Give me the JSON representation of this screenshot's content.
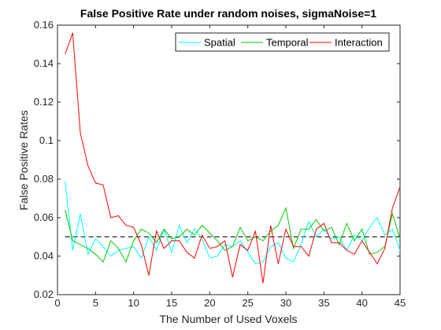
{
  "chart_data": {
    "type": "line",
    "title": "False Positive Rate under random noises, sigmaNoise=1",
    "xlabel": "The Number of Used Voxels",
    "ylabel": "False Positive Rates",
    "xlim": [
      0,
      45
    ],
    "ylim": [
      0.02,
      0.16
    ],
    "xticks": [
      0,
      5,
      10,
      15,
      20,
      25,
      30,
      35,
      40,
      45
    ],
    "xtick_labels": [
      "0",
      "5",
      "10",
      "15",
      "20",
      "25",
      "30",
      "35",
      "40",
      "45"
    ],
    "yticks": [
      0.02,
      0.04,
      0.06,
      0.08,
      0.1,
      0.12,
      0.14,
      0.16
    ],
    "ytick_labels": [
      "0.02",
      "0.04",
      "0.06",
      "0.08",
      "0.1",
      "0.12",
      "0.14",
      "0.16"
    ],
    "legend_position": "top-right",
    "grid": false,
    "x": [
      1,
      2,
      3,
      4,
      5,
      6,
      7,
      8,
      9,
      10,
      11,
      12,
      13,
      14,
      15,
      16,
      17,
      18,
      19,
      20,
      21,
      22,
      23,
      24,
      25,
      26,
      27,
      28,
      29,
      30,
      31,
      32,
      33,
      34,
      35,
      36,
      37,
      38,
      39,
      40,
      41,
      42,
      43,
      44,
      45
    ],
    "series": [
      {
        "name": "Spatial",
        "color": "#00ffff",
        "values": [
          0.079,
          0.043,
          0.062,
          0.041,
          0.049,
          0.045,
          0.04,
          0.043,
          0.044,
          0.045,
          0.039,
          0.05,
          0.043,
          0.054,
          0.042,
          0.056,
          0.047,
          0.054,
          0.049,
          0.039,
          0.04,
          0.046,
          0.045,
          0.048,
          0.042,
          0.036,
          0.037,
          0.045,
          0.047,
          0.039,
          0.037,
          0.046,
          0.058,
          0.05,
          0.054,
          0.049,
          0.05,
          0.043,
          0.051,
          0.048,
          0.055,
          0.06,
          0.051,
          0.054,
          0.043
        ]
      },
      {
        "name": "Temporal",
        "color": "#00cc00",
        "values": [
          0.064,
          0.048,
          0.046,
          0.044,
          0.041,
          0.037,
          0.048,
          0.044,
          0.037,
          0.048,
          0.054,
          0.052,
          0.047,
          0.054,
          0.049,
          0.05,
          0.054,
          0.051,
          0.056,
          0.052,
          0.048,
          0.043,
          0.045,
          0.055,
          0.048,
          0.05,
          0.048,
          0.053,
          0.056,
          0.065,
          0.044,
          0.054,
          0.054,
          0.059,
          0.053,
          0.055,
          0.046,
          0.057,
          0.048,
          0.054,
          0.041,
          0.042,
          0.045,
          0.062,
          0.049
        ]
      },
      {
        "name": "Interaction",
        "color": "#ff0000",
        "values": [
          0.145,
          0.156,
          0.104,
          0.087,
          0.078,
          0.077,
          0.06,
          0.061,
          0.056,
          0.055,
          0.046,
          0.03,
          0.053,
          0.044,
          0.048,
          0.048,
          0.042,
          0.039,
          0.051,
          0.044,
          0.045,
          0.048,
          0.029,
          0.046,
          0.043,
          0.053,
          0.026,
          0.056,
          0.036,
          0.054,
          0.045,
          0.045,
          0.04,
          0.054,
          0.057,
          0.047,
          0.047,
          0.043,
          0.041,
          0.048,
          0.042,
          0.036,
          0.044,
          0.065,
          0.076
        ]
      }
    ],
    "reference_line": {
      "y": 0.05,
      "style": "dashed",
      "color": "#000000"
    }
  }
}
